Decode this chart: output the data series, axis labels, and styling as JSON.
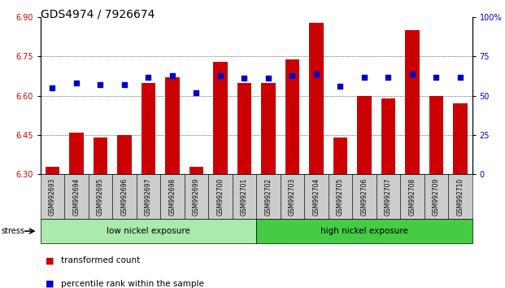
{
  "title": "GDS4974 / 7926674",
  "samples": [
    "GSM992693",
    "GSM992694",
    "GSM992695",
    "GSM992696",
    "GSM992697",
    "GSM992698",
    "GSM992699",
    "GSM992700",
    "GSM992701",
    "GSM992702",
    "GSM992703",
    "GSM992704",
    "GSM992705",
    "GSM992706",
    "GSM992707",
    "GSM992708",
    "GSM992709",
    "GSM992710"
  ],
  "bar_values": [
    6.33,
    6.46,
    6.44,
    6.45,
    6.65,
    6.67,
    6.33,
    6.73,
    6.65,
    6.65,
    6.74,
    6.88,
    6.44,
    6.6,
    6.59,
    6.85,
    6.6,
    6.57
  ],
  "pct_values": [
    55,
    58,
    57,
    57,
    62,
    63,
    52,
    63,
    61,
    61,
    63,
    64,
    56,
    62,
    62,
    64,
    62,
    62
  ],
  "ylim_left": [
    6.3,
    6.9
  ],
  "ylim_right": [
    0,
    100
  ],
  "yticks_left": [
    6.3,
    6.45,
    6.6,
    6.75,
    6.9
  ],
  "yticks_right": [
    0,
    25,
    50,
    75,
    100
  ],
  "grid_ticks": [
    6.45,
    6.6,
    6.75
  ],
  "bar_color": "#cc0000",
  "pct_color": "#0000cc",
  "bar_bottom": 6.3,
  "groups": [
    {
      "label": "low nickel exposure",
      "start": 0,
      "end": 9,
      "color": "#aaeaaa"
    },
    {
      "label": "high nickel exposure",
      "start": 9,
      "end": 18,
      "color": "#44cc44"
    }
  ],
  "stress_label": "stress",
  "legend": [
    {
      "label": "transformed count",
      "color": "#cc0000"
    },
    {
      "label": "percentile rank within the sample",
      "color": "#0000cc"
    }
  ],
  "title_fontsize": 10,
  "tick_fontsize": 7,
  "sample_tick_fontsize": 5.5,
  "bg_color": "#ffffff",
  "tick_bg_color": "#cccccc"
}
